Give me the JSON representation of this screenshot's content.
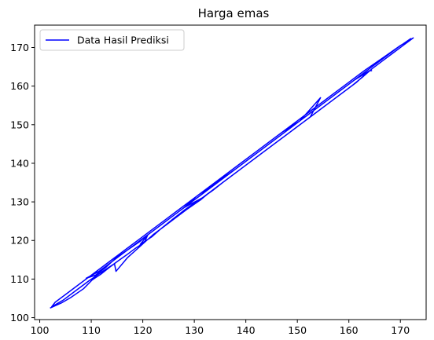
{
  "chart_data": {
    "type": "line",
    "title": "Harga emas",
    "xlabel": "",
    "ylabel": "",
    "xlim": [
      99,
      175
    ],
    "ylim": [
      99.5,
      175.8
    ],
    "xticks": [
      100,
      110,
      120,
      130,
      140,
      150,
      160,
      170
    ],
    "yticks": [
      100,
      110,
      120,
      130,
      140,
      150,
      160,
      170
    ],
    "grid": false,
    "legend_position": "upper-left",
    "series": [
      {
        "name": "Data Hasil Prediksi",
        "color": "#0000ff",
        "x": [
          102.0,
          104.2,
          106.0,
          108.5,
          110.2,
          111.8,
          113.5,
          115.0,
          116.8,
          118.6,
          120.3,
          121.0,
          119.5,
          121.8,
          123.5,
          125.8,
          128.0,
          129.8,
          131.5,
          133.6,
          135.5,
          138.0,
          140.5,
          143.0,
          145.5,
          148.0,
          150.5,
          153.0,
          155.5,
          158.0,
          160.5,
          162.8,
          164.5,
          166.5,
          168.5,
          170.5,
          172.5,
          170.0,
          166.8,
          163.0,
          159.5,
          156.0,
          152.5,
          149.0,
          145.5,
          142.0,
          138.5,
          135.0,
          132.0,
          129.0,
          126.5,
          124.0,
          121.5,
          119.5,
          117.5,
          115.5,
          113.5,
          111.5,
          109.5,
          107.5,
          105.5,
          103.0,
          102.3,
          104.5,
          107.0,
          109.5,
          112.0,
          114.5,
          114.8,
          117.0,
          119.5,
          122.0,
          124.5,
          127.0,
          128.5,
          131.2,
          133.0,
          135.0,
          137.5,
          140.0,
          142.5,
          145.0,
          147.5,
          150.0,
          152.5,
          154.5,
          150.5,
          147.0,
          143.5,
          140.0,
          136.5,
          133.0,
          130.5,
          128.0,
          131.5,
          134.5,
          137.5,
          140.5,
          143.5,
          146.5,
          149.5,
          152.5,
          155.5,
          158.5,
          161.5,
          163.8,
          161.0,
          158.0,
          155.0,
          152.0,
          149.0,
          146.0,
          143.0,
          140.0,
          137.0,
          134.0,
          131.0,
          128.5,
          126.0,
          123.5,
          121.0,
          118.5,
          116.0,
          114.5,
          117.0,
          119.5,
          121.0,
          123.5,
          126.0,
          128.5,
          131.5,
          134.5,
          137.5,
          140.5,
          143.5,
          146.5,
          149.5,
          152.5,
          155.5,
          158.5,
          161.5,
          164.5,
          167.5,
          169.5,
          172.0,
          169.5,
          166.0,
          162.5,
          159.0,
          155.5,
          152.0,
          148.5,
          145.0,
          141.5,
          138.0,
          134.5,
          131.0,
          128.0,
          125.0,
          122.0,
          119.5,
          117.0,
          114.8,
          112.8,
          110.8,
          109.0,
          111.5,
          113.5,
          116.0,
          118.5,
          121.0,
          123.5,
          126.0,
          128.5,
          131.0,
          134.0,
          137.0,
          140.0,
          143.0,
          146.0,
          149.0,
          152.0,
          155.0,
          158.0,
          161.0,
          164.0,
          164.5
        ],
        "y": [
          102.5,
          103.8,
          105.2,
          107.5,
          109.8,
          111.2,
          113.0,
          114.5,
          116.2,
          118.0,
          119.5,
          121.5,
          119.0,
          121.0,
          123.0,
          125.5,
          127.8,
          129.5,
          131.0,
          133.0,
          135.0,
          137.5,
          140.0,
          142.5,
          145.0,
          147.5,
          150.0,
          152.5,
          155.0,
          157.5,
          160.0,
          162.5,
          164.5,
          166.5,
          168.5,
          170.5,
          172.5,
          170.5,
          167.5,
          164.0,
          160.5,
          157.0,
          153.5,
          150.0,
          146.5,
          143.0,
          139.5,
          136.0,
          133.0,
          130.0,
          127.5,
          125.0,
          122.5,
          120.5,
          118.5,
          116.5,
          114.5,
          112.5,
          110.5,
          108.5,
          106.5,
          104.0,
          102.8,
          104.5,
          107.0,
          109.5,
          111.8,
          114.0,
          112.0,
          115.5,
          118.5,
          121.5,
          124.0,
          126.5,
          128.0,
          130.5,
          132.5,
          134.5,
          137.0,
          139.5,
          142.0,
          144.5,
          147.0,
          149.5,
          152.0,
          157.0,
          151.0,
          148.0,
          144.5,
          141.0,
          137.5,
          134.0,
          131.5,
          128.5,
          131.0,
          134.0,
          137.0,
          140.0,
          143.0,
          146.0,
          149.0,
          152.0,
          155.0,
          158.0,
          161.0,
          163.8,
          161.5,
          158.5,
          155.5,
          152.5,
          149.5,
          146.5,
          143.5,
          140.5,
          137.5,
          135.0,
          131.5,
          129.0,
          126.5,
          124.0,
          121.5,
          119.0,
          116.5,
          115.0,
          117.5,
          119.8,
          121.5,
          124.0,
          126.5,
          129.0,
          132.0,
          135.0,
          138.0,
          141.0,
          144.0,
          147.0,
          150.0,
          153.0,
          156.0,
          159.0,
          162.0,
          165.0,
          168.0,
          170.0,
          172.3,
          170.0,
          166.5,
          163.0,
          159.5,
          156.0,
          152.5,
          149.0,
          145.5,
          142.0,
          138.5,
          135.2,
          131.5,
          128.5,
          125.5,
          122.5,
          120.0,
          117.5,
          115.5,
          113.0,
          111.0,
          110.2,
          112.0,
          114.0,
          116.5,
          119.0,
          121.5,
          124.0,
          126.5,
          129.0,
          131.5,
          134.5,
          137.5,
          140.5,
          143.5,
          146.5,
          149.5,
          152.5,
          155.5,
          158.5,
          161.5,
          164.0,
          164.0
        ]
      }
    ]
  }
}
